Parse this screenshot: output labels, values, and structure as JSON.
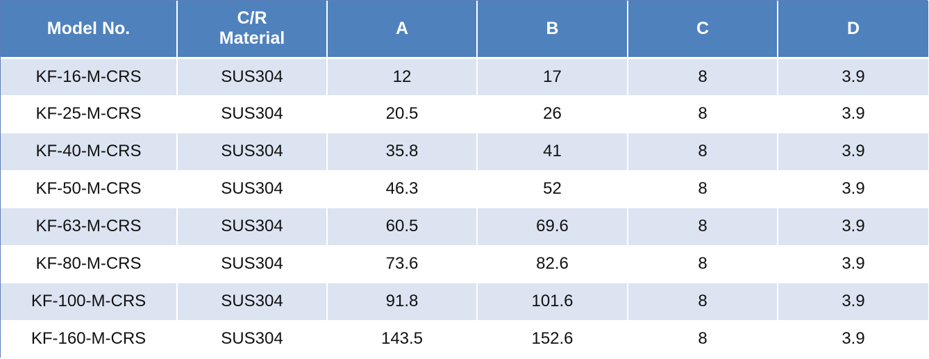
{
  "table": {
    "headers": [
      {
        "lines": [
          "Model No."
        ]
      },
      {
        "lines": [
          "C/R",
          "Material"
        ]
      },
      {
        "lines": [
          "A"
        ]
      },
      {
        "lines": [
          "B"
        ]
      },
      {
        "lines": [
          "C"
        ]
      },
      {
        "lines": [
          "D"
        ]
      }
    ],
    "rows": [
      [
        "KF-16-M-CRS",
        "SUS304",
        "12",
        "17",
        "8",
        "3.9"
      ],
      [
        "KF-25-M-CRS",
        "SUS304",
        "20.5",
        "26",
        "8",
        "3.9"
      ],
      [
        "KF-40-M-CRS",
        "SUS304",
        "35.8",
        "41",
        "8",
        "3.9"
      ],
      [
        "KF-50-M-CRS",
        "SUS304",
        "46.3",
        "52",
        "8",
        "3.9"
      ],
      [
        "KF-63-M-CRS",
        "SUS304",
        "60.5",
        "69.6",
        "8",
        "3.9"
      ],
      [
        "KF-80-M-CRS",
        "SUS304",
        "73.6",
        "82.6",
        "8",
        "3.9"
      ],
      [
        "KF-100-M-CRS",
        "SUS304",
        "91.8",
        "101.6",
        "8",
        "3.9"
      ],
      [
        "KF-160-M-CRS",
        "SUS304",
        "143.5",
        "152.6",
        "8",
        "3.9"
      ]
    ]
  },
  "colors": {
    "header_bg": "#4f81bd",
    "header_text": "#ffffff",
    "band_row_bg": "#dbe4f0",
    "plain_row_bg": "#ffffff"
  }
}
